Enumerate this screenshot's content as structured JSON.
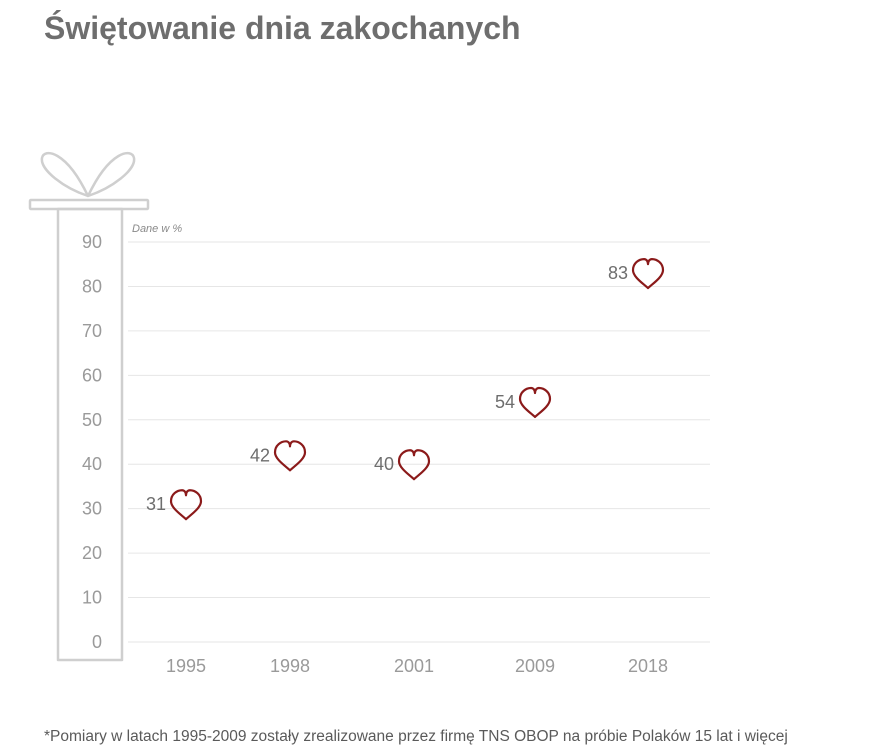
{
  "page": {
    "title": "Świętowanie dnia zakochanych",
    "footnote": "*Pomiary w latach 1995-2009 zostały zrealizowane przez firmę TNS OBOP na próbie Polaków 15 lat i więcej"
  },
  "colors": {
    "title": "#6e6e6e",
    "axis_text": "#9a9a9a",
    "value_text": "#6e6e6e",
    "grid": "#e6e6e6",
    "gift_outline": "#cfcfcf",
    "heart": "#8b1a1a"
  },
  "chart_data": {
    "type": "scatter",
    "unit_note": "Dane w %",
    "categories": [
      "1995",
      "1998",
      "2001",
      "2009",
      "2018"
    ],
    "values": [
      31,
      42,
      40,
      54,
      83
    ],
    "ylim": [
      0,
      90
    ],
    "yticks": [
      0,
      10,
      20,
      30,
      40,
      50,
      60,
      70,
      80,
      90
    ],
    "grid": true,
    "marker": "heart-icon"
  }
}
